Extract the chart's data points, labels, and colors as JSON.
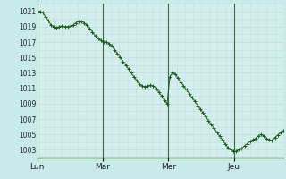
{
  "background_color": "#c8eaea",
  "plot_bg_color": "#d4eeee",
  "grid_color_minor": "#c0dede",
  "grid_color_major": "#b8d8d8",
  "line_color": "#1a5c1a",
  "marker_color": "#1a5c1a",
  "vline_color": "#3a6a3a",
  "ylim": [
    1002,
    1022
  ],
  "yticks": [
    1003,
    1005,
    1007,
    1009,
    1011,
    1013,
    1015,
    1017,
    1019,
    1021
  ],
  "xtick_labels": [
    "Lun",
    "Mar",
    "Mer",
    "Jeu"
  ],
  "xtick_positions": [
    0,
    24,
    48,
    72
  ],
  "total_hours": 90,
  "y_values": [
    1021.0,
    1021.0,
    1020.8,
    1020.3,
    1019.8,
    1019.2,
    1019.0,
    1018.9,
    1019.0,
    1019.1,
    1019.0,
    1019.0,
    1019.1,
    1019.2,
    1019.5,
    1019.7,
    1019.7,
    1019.5,
    1019.2,
    1018.8,
    1018.3,
    1017.8,
    1017.5,
    1017.2,
    1017.0,
    1017.0,
    1016.8,
    1016.5,
    1016.0,
    1015.5,
    1015.0,
    1014.5,
    1014.0,
    1013.5,
    1013.0,
    1012.5,
    1012.0,
    1011.5,
    1011.3,
    1011.2,
    1011.3,
    1011.4,
    1011.3,
    1011.0,
    1010.5,
    1010.0,
    1009.5,
    1009.0,
    1012.5,
    1013.0,
    1012.8,
    1012.3,
    1011.8,
    1011.3,
    1010.8,
    1010.3,
    1009.8,
    1009.3,
    1008.8,
    1008.3,
    1007.8,
    1007.3,
    1006.8,
    1006.3,
    1005.8,
    1005.3,
    1004.8,
    1004.3,
    1003.8,
    1003.3,
    1003.0,
    1002.8,
    1002.8,
    1003.0,
    1003.2,
    1003.5,
    1003.8,
    1004.1,
    1004.3,
    1004.5,
    1004.8,
    1005.0,
    1004.8,
    1004.5,
    1004.3,
    1004.2,
    1004.6,
    1004.9,
    1005.2,
    1005.5
  ]
}
